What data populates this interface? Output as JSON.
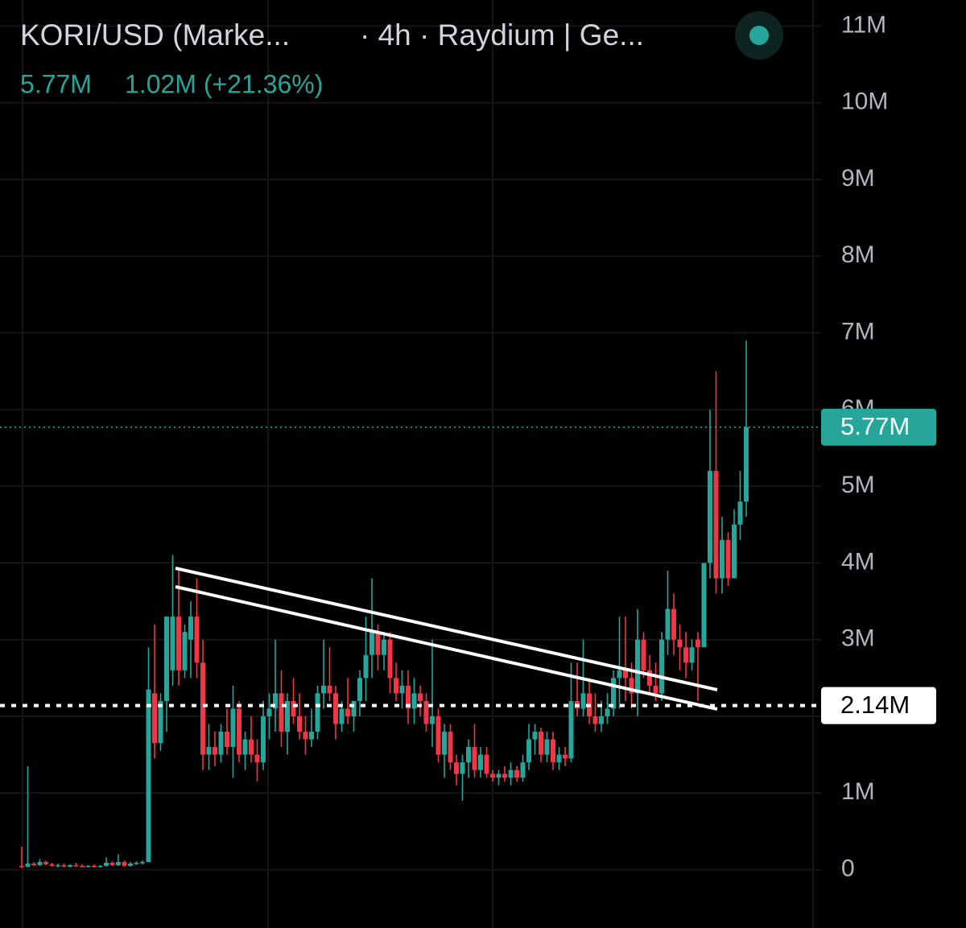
{
  "chart_data": {
    "type": "candlestick",
    "title": "KORI/USD (Marke...",
    "subtitle": "· 4h · Raydium | Ge...",
    "change_label": "1.02M (+21.36%)",
    "up_color": "#26a69a",
    "down_color": "#f23645",
    "grid": true,
    "ylim": [
      -0.76,
      11.34
    ],
    "yticks": [
      {
        "value": 0,
        "label": "0"
      },
      {
        "value": 1,
        "label": "1M"
      },
      {
        "value": 2,
        "label": "2M"
      },
      {
        "value": 3,
        "label": "3M"
      },
      {
        "value": 4,
        "label": "4M"
      },
      {
        "value": 5,
        "label": "5M"
      },
      {
        "value": 6,
        "label": "6M"
      },
      {
        "value": 7,
        "label": "7M"
      },
      {
        "value": 8,
        "label": "8M"
      },
      {
        "value": 9,
        "label": "9M"
      },
      {
        "value": 10,
        "label": "10M"
      },
      {
        "value": 11,
        "label": "11M"
      }
    ],
    "last_price": {
      "value": 5.77,
      "label": "5.77M",
      "color": "#26a69a"
    },
    "price_line": {
      "value": 2.14,
      "label": "2.14M",
      "color": "#ffffff"
    },
    "open": [
      0.05,
      0.04,
      0.08,
      0.06,
      0.1,
      0.07,
      0.05,
      0.06,
      0.04,
      0.06,
      0.05,
      0.04,
      0.05,
      0.04,
      0.05,
      0.09,
      0.06,
      0.1,
      0.05,
      0.08,
      0.09,
      0.1,
      2.3,
      1.65,
      2.2,
      2.6,
      3.3,
      2.6,
      3.0,
      3.3,
      2.7,
      1.5,
      1.6,
      1.5,
      1.8,
      1.6,
      2.1,
      1.5,
      1.7,
      1.5,
      1.4,
      2.0,
      2.1,
      2.3,
      1.8,
      2.2,
      2.0,
      1.8,
      1.7,
      1.8,
      2.3,
      2.4,
      2.3,
      1.9,
      2.1,
      2.0,
      2.2,
      2.5,
      2.8,
      3.1,
      2.8,
      3.0,
      2.5,
      2.3,
      2.4,
      2.1,
      2.3,
      2.2,
      1.9,
      2.0,
      1.5,
      1.8,
      1.4,
      1.25,
      1.4,
      1.6,
      1.3,
      1.5,
      1.25,
      1.2,
      1.25,
      1.2,
      1.3,
      1.2,
      1.4,
      1.7,
      1.8,
      1.5,
      1.7,
      1.4,
      1.5,
      1.45,
      2.2,
      2.1,
      2.3,
      2.0,
      1.9,
      2.0,
      2.1,
      2.5,
      2.6,
      2.5,
      2.3,
      3.0,
      2.6,
      2.4,
      2.3,
      3.0,
      3.4,
      3.0,
      2.9,
      2.7,
      3.0,
      2.9,
      4.0,
      5.2,
      3.8,
      4.3,
      3.8,
      4.5,
      4.8
    ],
    "high": [
      0.3,
      1.35,
      0.1,
      0.14,
      0.12,
      0.09,
      0.08,
      0.08,
      0.07,
      0.09,
      0.07,
      0.06,
      0.07,
      0.06,
      0.16,
      0.11,
      0.2,
      0.12,
      0.1,
      0.11,
      0.12,
      2.9,
      3.2,
      2.3,
      3.3,
      4.1,
      3.9,
      3.2,
      3.5,
      3.8,
      3.0,
      1.9,
      1.8,
      1.9,
      2.1,
      2.4,
      2.2,
      1.8,
      2.0,
      1.7,
      2.2,
      2.3,
      3.0,
      2.6,
      2.3,
      2.5,
      2.3,
      2.0,
      2.1,
      2.4,
      3.0,
      2.9,
      2.4,
      2.2,
      2.5,
      2.2,
      2.6,
      3.3,
      3.8,
      3.2,
      3.1,
      3.1,
      2.7,
      2.6,
      2.6,
      2.5,
      2.4,
      2.3,
      3.0,
      2.1,
      1.9,
      1.9,
      1.5,
      1.5,
      1.7,
      1.9,
      1.6,
      1.6,
      1.3,
      1.3,
      1.35,
      1.4,
      1.35,
      1.5,
      1.9,
      1.9,
      1.85,
      1.8,
      1.8,
      1.6,
      1.6,
      2.7,
      2.7,
      3.0,
      2.5,
      2.3,
      2.2,
      2.3,
      2.6,
      3.3,
      3.3,
      2.7,
      3.4,
      3.1,
      2.8,
      2.7,
      3.1,
      3.9,
      3.6,
      3.2,
      3.1,
      3.0,
      3.1,
      4.0,
      6.0,
      6.5,
      4.6,
      4.4,
      4.7,
      5.2,
      6.9
    ],
    "low": [
      0.02,
      0.03,
      0.05,
      0.05,
      0.06,
      0.04,
      0.03,
      0.04,
      0.03,
      0.04,
      0.03,
      0.03,
      0.03,
      0.03,
      0.04,
      0.05,
      0.05,
      0.04,
      0.04,
      0.06,
      0.07,
      0.1,
      1.45,
      1.55,
      1.8,
      2.4,
      2.4,
      2.5,
      2.5,
      2.5,
      1.3,
      1.3,
      1.35,
      1.4,
      1.5,
      1.2,
      1.4,
      1.3,
      1.4,
      1.15,
      1.3,
      1.7,
      1.8,
      1.6,
      1.5,
      1.9,
      1.7,
      1.5,
      1.6,
      1.7,
      2.1,
      2.2,
      1.7,
      1.8,
      1.9,
      1.8,
      2.0,
      2.2,
      2.5,
      2.6,
      2.6,
      2.3,
      2.2,
      2.1,
      1.9,
      1.9,
      2.0,
      1.8,
      1.6,
      1.4,
      1.2,
      1.3,
      1.1,
      0.9,
      1.2,
      1.2,
      1.2,
      1.2,
      1.15,
      1.1,
      1.15,
      1.1,
      1.15,
      1.15,
      1.3,
      1.5,
      1.4,
      1.4,
      1.3,
      1.3,
      1.35,
      1.4,
      2.0,
      2.0,
      1.9,
      1.8,
      1.8,
      1.9,
      2.0,
      2.1,
      2.2,
      2.1,
      2.0,
      2.5,
      2.3,
      2.2,
      2.2,
      2.8,
      2.8,
      2.6,
      2.5,
      2.6,
      2.2,
      2.9,
      3.8,
      3.6,
      3.6,
      3.7,
      3.8,
      4.3,
      4.6
    ],
    "close": [
      0.04,
      0.08,
      0.06,
      0.1,
      0.07,
      0.05,
      0.06,
      0.04,
      0.06,
      0.05,
      0.04,
      0.05,
      0.04,
      0.05,
      0.09,
      0.06,
      0.1,
      0.05,
      0.08,
      0.09,
      0.1,
      2.35,
      1.65,
      2.2,
      3.3,
      3.3,
      2.6,
      3.1,
      3.3,
      2.7,
      1.5,
      1.6,
      1.5,
      1.8,
      1.6,
      2.1,
      1.5,
      1.7,
      1.5,
      1.4,
      2.0,
      2.1,
      2.3,
      1.8,
      2.2,
      2.0,
      1.8,
      1.7,
      1.8,
      2.3,
      2.4,
      2.3,
      1.9,
      2.1,
      2.0,
      2.2,
      2.5,
      2.8,
      3.1,
      2.8,
      3.0,
      2.5,
      2.3,
      2.4,
      2.1,
      2.3,
      2.2,
      1.9,
      2.0,
      1.5,
      1.8,
      1.4,
      1.25,
      1.4,
      1.6,
      1.3,
      1.5,
      1.25,
      1.2,
      1.25,
      1.2,
      1.3,
      1.2,
      1.4,
      1.7,
      1.8,
      1.5,
      1.7,
      1.4,
      1.5,
      1.45,
      2.2,
      2.1,
      2.3,
      2.0,
      1.9,
      2.0,
      2.1,
      2.5,
      2.6,
      2.5,
      2.3,
      3.0,
      2.6,
      2.4,
      2.3,
      3.0,
      3.4,
      3.0,
      2.9,
      2.7,
      2.9,
      2.9,
      4.0,
      5.2,
      3.8,
      4.3,
      3.8,
      4.5,
      4.8,
      5.77
    ]
  }
}
